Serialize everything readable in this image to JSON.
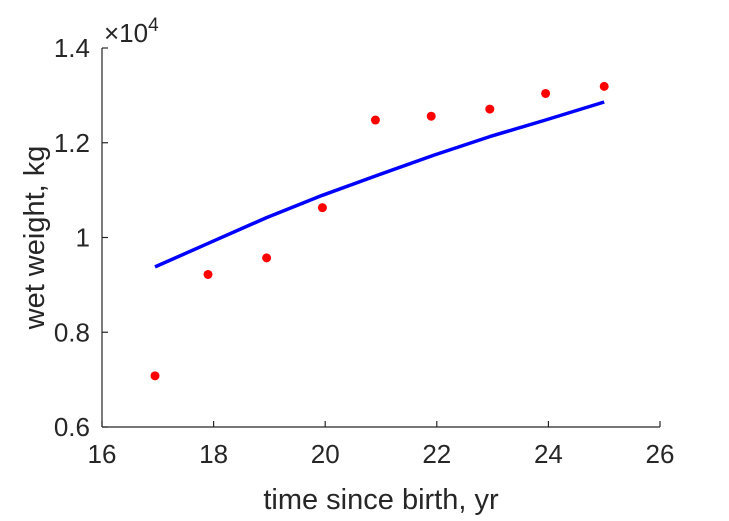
{
  "chart_data": {
    "type": "scatter",
    "title": "",
    "xlabel": "time since birth, yr",
    "ylabel": "wet weight, kg",
    "xlim": [
      16,
      26
    ],
    "ylim": [
      6000,
      14000
    ],
    "grid": false,
    "y_multiplier": {
      "base": "×10",
      "exponent": "4"
    },
    "x_ticks": [
      16,
      18,
      20,
      22,
      24,
      26
    ],
    "x_tick_labels": [
      "16",
      "18",
      "20",
      "22",
      "24",
      "26"
    ],
    "y_ticks": [
      6000,
      8000,
      10000,
      12000,
      14000
    ],
    "y_tick_labels": [
      "0.6",
      "0.8",
      "1",
      "1.2",
      "1.4"
    ],
    "series": [
      {
        "kind": "points",
        "color": "#ff0000",
        "x": [
          16.95,
          17.9,
          18.95,
          19.95,
          20.9,
          21.9,
          22.95,
          23.95,
          25.0
        ],
        "y": [
          7080,
          9220,
          9570,
          10630,
          12480,
          12560,
          12710,
          13040,
          13190
        ]
      },
      {
        "kind": "line",
        "color": "#0000ff",
        "x": [
          16.95,
          17.95,
          18.95,
          19.95,
          20.95,
          21.95,
          22.95,
          23.95,
          25.0
        ],
        "y": [
          9380,
          9900,
          10420,
          10890,
          11320,
          11740,
          12130,
          12480,
          12860
        ]
      }
    ]
  }
}
